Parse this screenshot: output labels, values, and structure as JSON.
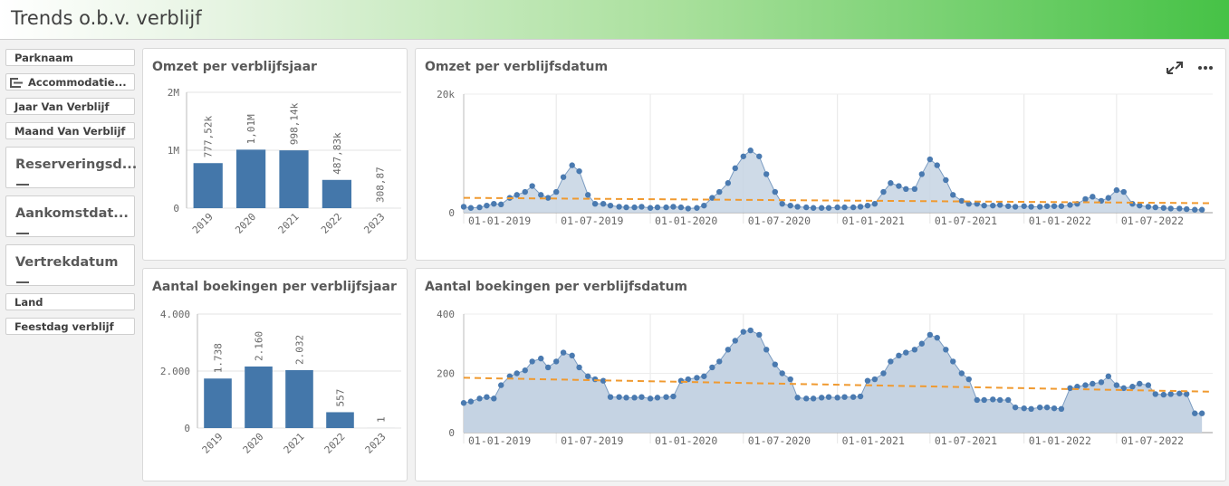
{
  "page_title": "Trends o.b.v. verblijf",
  "filters": {
    "parknaam": "Parknaam",
    "accommodatie": "Accommodatie...",
    "jaar": "Jaar Van Verblijf",
    "maand": "Maand Van Verblijf",
    "reservering": "Reserveringsd...",
    "aankomst": "Aankomstdat...",
    "vertrek": "Vertrekdatum",
    "land": "Land",
    "feestdag": "Feestdag verblijf"
  },
  "colors": {
    "bar": "#4477aa",
    "area": "#c5d3e3",
    "point": "#4a7ab0",
    "trend": "#f09a30"
  },
  "icons": [
    "fullscreen-icon",
    "more-options-icon",
    "hierarchy-icon"
  ],
  "chart_data": [
    {
      "type": "bar",
      "title": "Omzet per verblijfsjaar",
      "categories": [
        "2019",
        "2020",
        "2021",
        "2022",
        "2023"
      ],
      "values": [
        777520,
        1010000,
        998140,
        487830,
        308.87
      ],
      "data_labels": [
        "777,52k",
        "1,01M",
        "998,14k",
        "487,83k",
        "308,87"
      ],
      "yticks": [
        "0",
        "1M",
        "2M"
      ],
      "ylim": [
        0,
        2000000
      ]
    },
    {
      "type": "line",
      "title": "Omzet per verblijfsdatum",
      "x_ticks": [
        "01-01-2019",
        "01-07-2019",
        "01-01-2020",
        "01-07-2020",
        "01-01-2021",
        "01-07-2021",
        "01-01-2022",
        "01-07-2022"
      ],
      "yticks": [
        "0",
        "20k"
      ],
      "ylim": [
        0,
        20000
      ],
      "x": [
        "2019-01-01",
        "2019-01-15",
        "2019-02-01",
        "2019-02-15",
        "2019-03-01",
        "2019-03-15",
        "2019-04-01",
        "2019-04-15",
        "2019-05-01",
        "2019-05-15",
        "2019-06-01",
        "2019-06-15",
        "2019-07-01",
        "2019-07-15",
        "2019-08-01",
        "2019-08-15",
        "2019-09-01",
        "2019-09-15",
        "2019-10-01",
        "2019-10-15",
        "2019-11-01",
        "2019-11-15",
        "2019-12-01",
        "2019-12-15",
        "2020-01-01",
        "2020-01-15",
        "2020-02-01",
        "2020-02-15",
        "2020-03-01",
        "2020-03-15",
        "2020-04-01",
        "2020-04-15",
        "2020-05-01",
        "2020-05-15",
        "2020-06-01",
        "2020-06-15",
        "2020-07-01",
        "2020-07-15",
        "2020-08-01",
        "2020-08-15",
        "2020-09-01",
        "2020-09-15",
        "2020-10-01",
        "2020-10-15",
        "2020-11-01",
        "2020-11-15",
        "2020-12-01",
        "2020-12-15",
        "2021-01-01",
        "2021-01-15",
        "2021-02-01",
        "2021-02-15",
        "2021-03-01",
        "2021-03-15",
        "2021-04-01",
        "2021-04-15",
        "2021-05-01",
        "2021-05-15",
        "2021-06-01",
        "2021-06-15",
        "2021-07-01",
        "2021-07-15",
        "2021-08-01",
        "2021-08-15",
        "2021-09-01",
        "2021-09-15",
        "2021-10-01",
        "2021-10-15",
        "2021-11-01",
        "2021-11-15",
        "2021-12-01",
        "2021-12-15",
        "2022-01-01",
        "2022-01-15",
        "2022-02-01",
        "2022-02-15",
        "2022-03-01",
        "2022-03-15",
        "2022-04-01",
        "2022-04-15",
        "2022-05-01",
        "2022-05-15",
        "2022-06-01",
        "2022-06-15",
        "2022-07-01",
        "2022-07-15",
        "2022-08-01",
        "2022-08-15",
        "2022-09-01",
        "2022-09-15",
        "2022-10-01",
        "2022-10-15",
        "2022-11-01",
        "2022-11-15",
        "2022-12-01",
        "2022-12-15"
      ],
      "y": [
        1000,
        800,
        900,
        1200,
        1500,
        1400,
        2500,
        3000,
        3500,
        4500,
        3000,
        2500,
        3500,
        6000,
        8000,
        7000,
        3000,
        1500,
        1500,
        1200,
        1000,
        900,
        900,
        1000,
        800,
        900,
        900,
        1000,
        900,
        700,
        800,
        1200,
        2500,
        3500,
        5000,
        7500,
        9500,
        10500,
        9500,
        6500,
        3500,
        1500,
        1200,
        1000,
        900,
        800,
        800,
        800,
        900,
        900,
        900,
        1000,
        1200,
        1500,
        3500,
        5000,
        4500,
        4000,
        4000,
        6500,
        9000,
        8000,
        5500,
        3000,
        2000,
        1500,
        1500,
        1200,
        1200,
        1300,
        1100,
        1000,
        1100,
        1000,
        1000,
        1100,
        1100,
        1100,
        1300,
        1500,
        2300,
        2700,
        2000,
        2500,
        3800,
        3500,
        1500,
        1200,
        1000,
        900,
        800,
        700,
        700,
        600,
        500,
        500
      ],
      "trend": [
        2500,
        1600
      ]
    },
    {
      "type": "bar",
      "title": "Aantal boekingen per verblijfsjaar",
      "categories": [
        "2019",
        "2020",
        "2021",
        "2022",
        "2023"
      ],
      "values": [
        1738,
        2160,
        2032,
        557,
        1
      ],
      "data_labels": [
        "1.738",
        "2.160",
        "2.032",
        "557",
        "1"
      ],
      "yticks": [
        "0",
        "2.000",
        "4.000"
      ],
      "ylim": [
        0,
        4000
      ]
    },
    {
      "type": "area",
      "title": "Aantal boekingen per verblijfsdatum",
      "x_ticks": [
        "01-01-2019",
        "01-07-2019",
        "01-01-2020",
        "01-07-2020",
        "01-01-2021",
        "01-07-2021",
        "01-01-2022",
        "01-07-2022"
      ],
      "yticks": [
        "0",
        "200",
        "400"
      ],
      "ylim": [
        0,
        400
      ],
      "x": [
        "2019-01-01",
        "2019-01-15",
        "2019-02-01",
        "2019-02-15",
        "2019-03-01",
        "2019-03-15",
        "2019-04-01",
        "2019-04-15",
        "2019-05-01",
        "2019-05-15",
        "2019-06-01",
        "2019-06-15",
        "2019-07-01",
        "2019-07-15",
        "2019-08-01",
        "2019-08-15",
        "2019-09-01",
        "2019-09-15",
        "2019-10-01",
        "2019-10-15",
        "2019-11-01",
        "2019-11-15",
        "2019-12-01",
        "2019-12-15",
        "2020-01-01",
        "2020-01-15",
        "2020-02-01",
        "2020-02-15",
        "2020-03-01",
        "2020-03-15",
        "2020-04-01",
        "2020-04-15",
        "2020-05-01",
        "2020-05-15",
        "2020-06-01",
        "2020-06-15",
        "2020-07-01",
        "2020-07-15",
        "2020-08-01",
        "2020-08-15",
        "2020-09-01",
        "2020-09-15",
        "2020-10-01",
        "2020-10-15",
        "2020-11-01",
        "2020-11-15",
        "2020-12-01",
        "2020-12-15",
        "2021-01-01",
        "2021-01-15",
        "2021-02-01",
        "2021-02-15",
        "2021-03-01",
        "2021-03-15",
        "2021-04-01",
        "2021-04-15",
        "2021-05-01",
        "2021-05-15",
        "2021-06-01",
        "2021-06-15",
        "2021-07-01",
        "2021-07-15",
        "2021-08-01",
        "2021-08-15",
        "2021-09-01",
        "2021-09-15",
        "2021-10-01",
        "2021-10-15",
        "2021-11-01",
        "2021-11-15",
        "2021-12-01",
        "2021-12-15",
        "2022-01-01",
        "2022-01-15",
        "2022-02-01",
        "2022-02-15",
        "2022-03-01",
        "2022-03-15",
        "2022-04-01",
        "2022-04-15",
        "2022-05-01",
        "2022-05-15",
        "2022-06-01",
        "2022-06-15",
        "2022-07-01",
        "2022-07-15",
        "2022-08-01",
        "2022-08-15",
        "2022-09-01",
        "2022-09-15",
        "2022-10-01",
        "2022-10-15",
        "2022-11-01",
        "2022-11-15",
        "2022-12-01",
        "2022-12-15"
      ],
      "y": [
        100,
        105,
        115,
        120,
        115,
        160,
        190,
        200,
        210,
        240,
        250,
        220,
        240,
        270,
        260,
        220,
        190,
        180,
        175,
        120,
        120,
        118,
        118,
        120,
        115,
        118,
        120,
        122,
        175,
        180,
        185,
        190,
        220,
        240,
        280,
        310,
        340,
        345,
        330,
        280,
        230,
        200,
        180,
        118,
        115,
        115,
        118,
        120,
        118,
        120,
        120,
        122,
        175,
        180,
        200,
        240,
        260,
        270,
        280,
        300,
        330,
        320,
        280,
        240,
        200,
        180,
        110,
        110,
        112,
        110,
        110,
        85,
        82,
        80,
        85,
        85,
        82,
        80,
        150,
        155,
        160,
        165,
        170,
        190,
        160,
        150,
        155,
        165,
        160,
        130,
        128,
        130,
        132,
        130,
        65,
        65
      ],
      "trend": [
        185,
        138
      ]
    }
  ]
}
